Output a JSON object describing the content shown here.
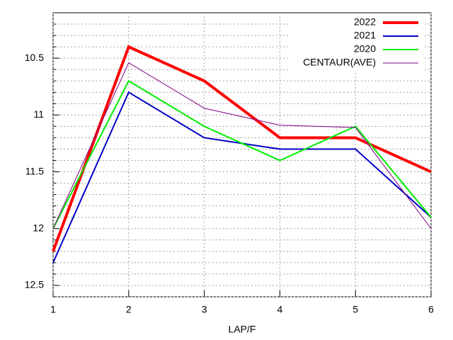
{
  "chart_data": {
    "type": "line",
    "x_label": "LAP/F",
    "x": [
      1,
      2,
      3,
      4,
      5,
      6
    ],
    "xlim": [
      1,
      6
    ],
    "xticks": [
      1,
      2,
      3,
      4,
      5,
      6
    ],
    "ylim": [
      12.6,
      10.1
    ],
    "yticks": [
      10.5,
      11,
      11.5,
      12,
      12.5
    ],
    "yminor": [
      10.2,
      10.3,
      10.4,
      10.6,
      10.7,
      10.8,
      10.9,
      11.1,
      11.2,
      11.3,
      11.4,
      11.6,
      11.7,
      11.8,
      11.9,
      12.1,
      12.2,
      12.3,
      12.4,
      12.6
    ],
    "grid": true,
    "legend": "top-right",
    "series": [
      {
        "name": "2022",
        "color": "#ff0000",
        "width": 4,
        "values": [
          12.2,
          10.4,
          10.7,
          11.2,
          11.2,
          11.5
        ]
      },
      {
        "name": "2021",
        "color": "#0000c8",
        "width": 2,
        "values": [
          12.3,
          10.8,
          11.2,
          11.3,
          11.3,
          11.9
        ]
      },
      {
        "name": "2020",
        "color": "#00ee00",
        "width": 2,
        "values": [
          12.0,
          10.7,
          11.1,
          11.4,
          11.1,
          11.9
        ]
      },
      {
        "name": "CENTAUR(AVE)",
        "color": "#800080",
        "width": 1,
        "values": [
          12.0,
          10.54,
          10.94,
          11.09,
          11.11,
          12.0
        ]
      }
    ]
  }
}
